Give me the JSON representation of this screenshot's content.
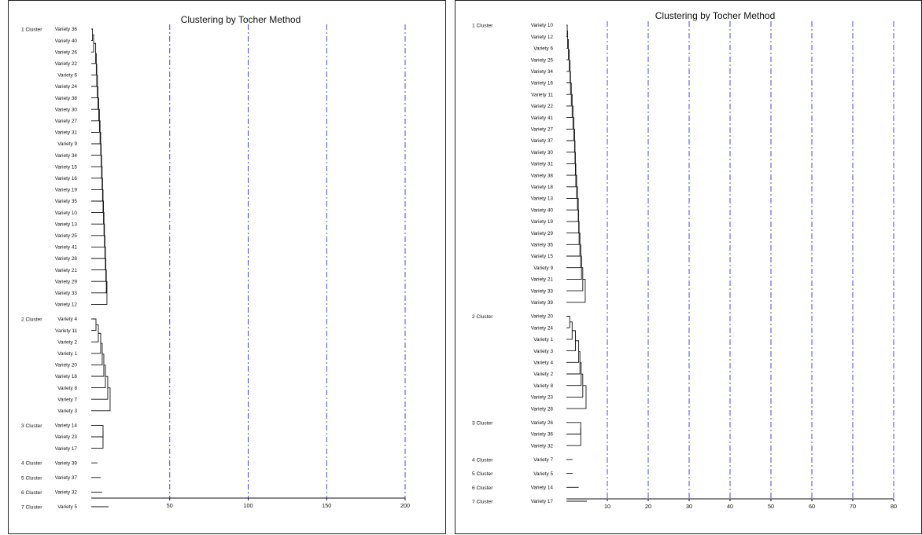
{
  "chart_data": [
    {
      "type": "dendrogram",
      "title": "Clustering by Tocher Method",
      "xlim": [
        0,
        200
      ],
      "grid": true,
      "xticks": [
        50,
        100,
        150,
        200
      ],
      "clusters": [
        {
          "label": "1 Cluster",
          "items": [
            {
              "name": "Variety 36",
              "value": 0.5
            },
            {
              "name": "Variety 40",
              "value": 0.8
            },
            {
              "name": "Variety 26",
              "value": 1.5
            },
            {
              "name": "Variety 22",
              "value": 2.8
            },
            {
              "name": "Variety 6",
              "value": 3.2
            },
            {
              "name": "Variety 24",
              "value": 3.5
            },
            {
              "name": "Variety 38",
              "value": 3.9
            },
            {
              "name": "Variety 30",
              "value": 4.3
            },
            {
              "name": "Variety 27",
              "value": 4.8
            },
            {
              "name": "Variety 31",
              "value": 5.2
            },
            {
              "name": "Variety 9",
              "value": 5.6
            },
            {
              "name": "Variety 34",
              "value": 6.0
            },
            {
              "name": "Variety 15",
              "value": 6.3
            },
            {
              "name": "Variety 16",
              "value": 6.6
            },
            {
              "name": "Variety 19",
              "value": 6.9
            },
            {
              "name": "Variety 35",
              "value": 7.2
            },
            {
              "name": "Variety 10",
              "value": 7.5
            },
            {
              "name": "Variety 13",
              "value": 7.8
            },
            {
              "name": "Variety 25",
              "value": 8.1
            },
            {
              "name": "Variety 41",
              "value": 8.4
            },
            {
              "name": "Variety 28",
              "value": 8.7
            },
            {
              "name": "Variety 21",
              "value": 9.0
            },
            {
              "name": "Variety 29",
              "value": 9.3
            },
            {
              "name": "Variety 33",
              "value": 9.6
            },
            {
              "name": "Variety 12",
              "value": 10.0
            }
          ]
        },
        {
          "label": "2 Cluster",
          "items": [
            {
              "name": "Variety 4",
              "value": 2.0
            },
            {
              "name": "Variety 11",
              "value": 3.0
            },
            {
              "name": "Variety 2",
              "value": 4.5
            },
            {
              "name": "Variety 1",
              "value": 6.0
            },
            {
              "name": "Variety 20",
              "value": 7.0
            },
            {
              "name": "Variety 18",
              "value": 8.0
            },
            {
              "name": "Variety 8",
              "value": 9.0
            },
            {
              "name": "Variety 7",
              "value": 10.5
            },
            {
              "name": "Variety 3",
              "value": 12.0
            }
          ]
        },
        {
          "label": "3 Cluster",
          "items": [
            {
              "name": "Variety 14",
              "value": 4.0
            },
            {
              "name": "Variety 23",
              "value": 7.5
            },
            {
              "name": "Variety 17",
              "value": 7.5
            }
          ]
        },
        {
          "label": "4 Cluster",
          "items": [
            {
              "name": "Variety 39",
              "value": 4.0
            }
          ]
        },
        {
          "label": "5 Cluster",
          "items": [
            {
              "name": "Variety 37",
              "value": 6.0
            }
          ]
        },
        {
          "label": "6 Cluster",
          "items": [
            {
              "name": "Variety 32",
              "value": 7.0
            }
          ]
        },
        {
          "label": "7 Cluster",
          "items": [
            {
              "name": "Variety 5",
              "value": 11.0
            }
          ]
        }
      ]
    },
    {
      "type": "dendrogram",
      "title": "Clustering by Tocher Method",
      "xlim": [
        0,
        80
      ],
      "grid": true,
      "xticks": [
        10,
        20,
        30,
        40,
        50,
        60,
        70,
        80
      ],
      "clusters": [
        {
          "label": "1 Cluster",
          "items": [
            {
              "name": "Variety 10",
              "value": 0.1
            },
            {
              "name": "Variety 12",
              "value": 0.2
            },
            {
              "name": "Variety 6",
              "value": 0.3
            },
            {
              "name": "Variety 25",
              "value": 0.5
            },
            {
              "name": "Variety 34",
              "value": 0.7
            },
            {
              "name": "Variety 16",
              "value": 0.9
            },
            {
              "name": "Variety 11",
              "value": 1.0
            },
            {
              "name": "Variety 22",
              "value": 1.2
            },
            {
              "name": "Variety 41",
              "value": 1.4
            },
            {
              "name": "Variety 27",
              "value": 1.6
            },
            {
              "name": "Variety 37",
              "value": 1.8
            },
            {
              "name": "Variety 30",
              "value": 2.0
            },
            {
              "name": "Variety 31",
              "value": 2.1
            },
            {
              "name": "Variety 38",
              "value": 2.2
            },
            {
              "name": "Variety 18",
              "value": 2.3
            },
            {
              "name": "Variety 13",
              "value": 2.5
            },
            {
              "name": "Variety 40",
              "value": 2.7
            },
            {
              "name": "Variety 19",
              "value": 2.9
            },
            {
              "name": "Variety 29",
              "value": 3.0
            },
            {
              "name": "Variety 35",
              "value": 3.1
            },
            {
              "name": "Variety 15",
              "value": 3.3
            },
            {
              "name": "Variety 9",
              "value": 3.5
            },
            {
              "name": "Variety 21",
              "value": 3.7
            },
            {
              "name": "Variety 33",
              "value": 4.0
            },
            {
              "name": "Variety 39",
              "value": 4.6
            }
          ]
        },
        {
          "label": "2 Cluster",
          "items": [
            {
              "name": "Variety 20",
              "value": 0.4
            },
            {
              "name": "Variety 24",
              "value": 0.8
            },
            {
              "name": "Variety 1",
              "value": 1.4
            },
            {
              "name": "Variety 3",
              "value": 2.2
            },
            {
              "name": "Variety 4",
              "value": 3.0
            },
            {
              "name": "Variety 2",
              "value": 3.3
            },
            {
              "name": "Variety 8",
              "value": 3.6
            },
            {
              "name": "Variety 23",
              "value": 4.0
            },
            {
              "name": "Variety 28",
              "value": 4.8
            }
          ]
        },
        {
          "label": "3 Cluster",
          "items": [
            {
              "name": "Variety 26",
              "value": 1.2
            },
            {
              "name": "Variety 36",
              "value": 3.5
            },
            {
              "name": "Variety 32",
              "value": 3.5
            }
          ]
        },
        {
          "label": "4 Cluster",
          "items": [
            {
              "name": "Variety 7",
              "value": 1.5
            }
          ]
        },
        {
          "label": "5 Cluster",
          "items": [
            {
              "name": "Variety 5",
              "value": 1.5
            }
          ]
        },
        {
          "label": "6 Cluster",
          "items": [
            {
              "name": "Variety 14",
              "value": 3.0
            }
          ]
        },
        {
          "label": "7 Cluster",
          "items": [
            {
              "name": "Variety 17",
              "value": 5.0
            }
          ]
        }
      ]
    }
  ]
}
